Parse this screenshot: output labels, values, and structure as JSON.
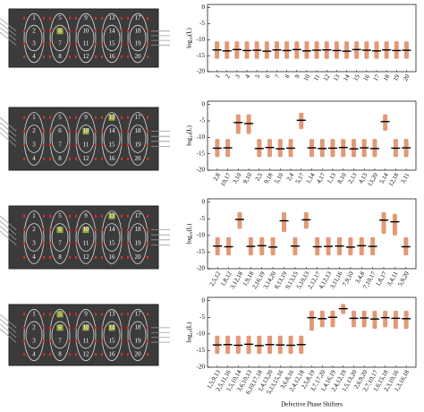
{
  "chart_data": [
    {
      "type": "range",
      "ylabel": "log₁₀(L)",
      "categories": [
        "1",
        "2",
        "3",
        "4",
        "5",
        "6",
        "7",
        "8",
        "9",
        "10",
        "11",
        "12",
        "13",
        "14",
        "15",
        "16",
        "17",
        "18",
        "19",
        "20"
      ],
      "values": [
        -13.2,
        -13.5,
        -13.1,
        -13.4,
        -13.3,
        -13.6,
        -13.2,
        -13.4,
        -13.1,
        -13.5,
        -13.3,
        -13.2,
        -13.4,
        -13.6,
        -13.1,
        -13.3,
        -13.5,
        -13.2,
        -13.4,
        -13.3
      ],
      "low": [
        -16,
        -16,
        -16,
        -16,
        -16,
        -16,
        -16,
        -16,
        -16,
        -16,
        -16,
        -16,
        -16,
        -16,
        -16,
        -16,
        -16,
        -16,
        -16,
        -16
      ],
      "high": [
        -10.5,
        -10.5,
        -10.5,
        -10.5,
        -10.5,
        -10.5,
        -10.5,
        -10.5,
        -10.5,
        -10.5,
        -10.5,
        -10.5,
        -10.5,
        -10.5,
        -10.5,
        -10.5,
        -10.5,
        -10.5,
        -10.5,
        -10.5
      ],
      "color": "#d9774a",
      "median_color": "#000000",
      "ylim": [
        -20,
        1
      ],
      "yticks": [
        0,
        -5,
        -10,
        -15,
        -20
      ]
    },
    {
      "type": "range",
      "ylabel": "log₁₀(L)",
      "categories": [
        "2,8",
        "10,17",
        "3,10",
        "9,10",
        "2,5",
        "9,18",
        "5,10",
        "2,4",
        "5,17",
        "1,14",
        "4,17",
        "1,13",
        "8,10",
        "2,13",
        "4,13",
        "13,20",
        "5,14",
        "12,18",
        "3,11"
      ],
      "values": [
        -13.3,
        -13.2,
        -5.5,
        -5.8,
        -13.4,
        -13.1,
        -13.5,
        -13.3,
        -4.8,
        -13.2,
        -13.4,
        -13.3,
        -13.1,
        -13.5,
        -13.2,
        -13.4,
        -5.2,
        -13.3,
        -13.2
      ],
      "low": [
        -16,
        -16,
        -9,
        -9,
        -16,
        -16,
        -16,
        -16,
        -7.5,
        -16,
        -16,
        -16,
        -16,
        -16,
        -16,
        -16,
        -8,
        -16,
        -16
      ],
      "high": [
        -10.5,
        -10.5,
        -3,
        -3,
        -10.5,
        -10.5,
        -10.5,
        -10.5,
        -2.5,
        -10.5,
        -10.5,
        -10.5,
        -10.5,
        -10.5,
        -10.5,
        -10.5,
        -3,
        -10.5,
        -10.5
      ],
      "color": "#d9774a",
      "median_color": "#000000",
      "ylim": [
        -20,
        1
      ],
      "yticks": [
        0,
        -5,
        -10,
        -15,
        -20
      ]
    },
    {
      "type": "range",
      "ylabel": "log₁₀(L)",
      "categories": [
        "2,5,12",
        "1,8,12",
        "3,12,18",
        "1,9,18",
        "2,16,19",
        "3,14,20",
        "8,13,19",
        "9,13,15",
        "5,10,13",
        "2,12,17",
        "4,12,13",
        "3,11,16",
        "7,9,10",
        "3,4,8",
        "7,10,17",
        "1,8,17",
        "3,4,11",
        "5,9,20"
      ],
      "values": [
        -13.2,
        -13.4,
        -5.2,
        -13.3,
        -13.1,
        -13.5,
        -5.6,
        -13.2,
        -5.3,
        -13.4,
        -13.3,
        -13.2,
        -13.5,
        -13.1,
        -13.3,
        -5.4,
        -5.9,
        -13.4
      ],
      "low": [
        -16,
        -16,
        -8,
        -16,
        -16,
        -16,
        -9,
        -16,
        -8,
        -16,
        -16,
        -16,
        -16,
        -16,
        -16,
        -9.5,
        -10,
        -16
      ],
      "high": [
        -10.5,
        -10.5,
        -3,
        -10.5,
        -10.5,
        -10.5,
        -3,
        -10.5,
        -3,
        -10.5,
        -10.5,
        -10.5,
        -10.5,
        -10.5,
        -10.5,
        -3,
        -3.5,
        -10.5
      ],
      "color": "#d9774a",
      "median_color": "#000000",
      "ylim": [
        -20,
        1
      ],
      "yticks": [
        0,
        -5,
        -10,
        -15,
        -20
      ]
    },
    {
      "type": "range",
      "ylabel": "log₁₀(L)",
      "xlabel": "Defective Phase Shifters",
      "categories": [
        "1,5,9,13",
        "2,5,11,16",
        "1,5,10,14",
        "3,6,10,13",
        "6,10,17,18",
        "1,4,13,20",
        "5,13,15,16",
        "3,6,8,16",
        "2,4,12,18",
        "2,5,8,19",
        "3,7,17,20",
        "1,4,16,19",
        "2,4,12,19",
        "1,5,13,20",
        "2,6,9,20",
        "2,7,10,17",
        "1,6,15,18",
        "2,3,10,16",
        "1,3,16,18"
      ],
      "values": [
        -13.3,
        -13.2,
        -13.4,
        -13.1,
        -13.5,
        -13.2,
        -13.3,
        -13.4,
        -13.2,
        -5.1,
        -5.4,
        -5.0,
        -2.4,
        -5.3,
        -5.2,
        -5.5,
        -5.1,
        -5.3,
        -5.4
      ],
      "low": [
        -16,
        -16,
        -16,
        -16,
        -16,
        -16,
        -16,
        -16,
        -16,
        -9,
        -8,
        -8,
        -4,
        -8,
        -8,
        -8.5,
        -8,
        -8.5,
        -8.5
      ],
      "high": [
        -10.5,
        -10.5,
        -10.5,
        -10.5,
        -10.5,
        -10.5,
        -10.5,
        -10.5,
        -10.5,
        -3,
        -3,
        -3,
        -1,
        -3,
        -3,
        -3,
        -3,
        -3,
        -3
      ],
      "color": "#d9774a",
      "median_color": "#000000",
      "ylim": [
        -20,
        1
      ],
      "yticks": [
        0,
        -5,
        -10,
        -15,
        -20
      ]
    }
  ],
  "phase_shifter_labels": [
    "1",
    "2",
    "3",
    "4",
    "5",
    "6",
    "7",
    "8",
    "9",
    "10",
    "11",
    "12",
    "13",
    "14",
    "15",
    "16",
    "17",
    "18",
    "19",
    "20"
  ],
  "diagrams": [
    {
      "defective": [
        6
      ]
    },
    {
      "defective": [
        10,
        13
      ]
    },
    {
      "defective": [
        6,
        10,
        13
      ]
    },
    {
      "defective": [
        5,
        6,
        10,
        14
      ]
    }
  ]
}
